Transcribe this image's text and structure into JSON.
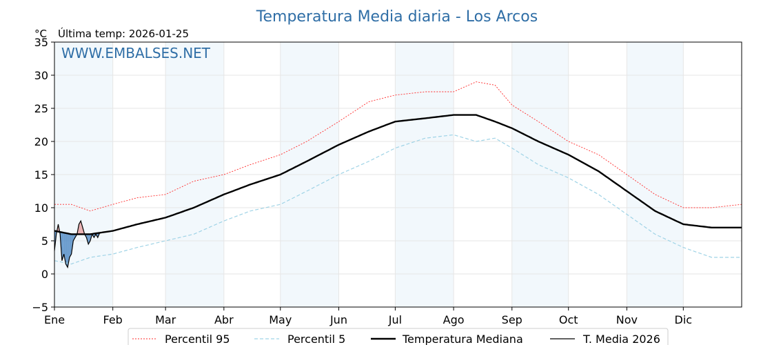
{
  "chart_data": {
    "type": "line",
    "title": "Temperatura Media diaria - Los Arcos",
    "unit_label": "°C",
    "last_temp_label": "Última temp: 2026-01-25",
    "watermark": "WWW.EMBALSES.NET",
    "ylim": [
      -5,
      35
    ],
    "yticks": [
      -5,
      0,
      5,
      10,
      15,
      20,
      25,
      30,
      35
    ],
    "ytick_labels": [
      "−5",
      "0",
      "5",
      "10",
      "15",
      "20",
      "25",
      "30",
      "35"
    ],
    "xlim": [
      1,
      366
    ],
    "months": [
      "Ene",
      "Feb",
      "Mar",
      "Abr",
      "May",
      "Jun",
      "Jul",
      "Ago",
      "Sep",
      "Oct",
      "Nov",
      "Dic"
    ],
    "month_start_days": [
      1,
      32,
      60,
      91,
      121,
      152,
      182,
      213,
      244,
      274,
      305,
      335
    ],
    "shaded_month_indices": [
      0,
      2,
      4,
      6,
      8,
      10
    ],
    "series": [
      {
        "name": "Percentil 95",
        "color": "#ff2a2a",
        "style": "dotted",
        "points": [
          [
            1,
            10.5
          ],
          [
            10,
            10.5
          ],
          [
            20,
            9.5
          ],
          [
            32,
            10.5
          ],
          [
            45,
            11.5
          ],
          [
            60,
            12
          ],
          [
            75,
            14
          ],
          [
            91,
            15
          ],
          [
            105,
            16.5
          ],
          [
            121,
            18
          ],
          [
            135,
            20
          ],
          [
            152,
            23
          ],
          [
            168,
            26
          ],
          [
            182,
            27
          ],
          [
            198,
            27.5
          ],
          [
            213,
            27.5
          ],
          [
            225,
            29
          ],
          [
            235,
            28.5
          ],
          [
            244,
            25.5
          ],
          [
            258,
            23
          ],
          [
            274,
            20
          ],
          [
            290,
            18
          ],
          [
            305,
            15
          ],
          [
            320,
            12
          ],
          [
            335,
            10
          ],
          [
            350,
            10
          ],
          [
            366,
            10.5
          ]
        ]
      },
      {
        "name": "Percentil 5",
        "color": "#9fd3e6",
        "style": "dashed",
        "points": [
          [
            1,
            2
          ],
          [
            10,
            1.5
          ],
          [
            20,
            2.5
          ],
          [
            32,
            3
          ],
          [
            45,
            4
          ],
          [
            60,
            5
          ],
          [
            75,
            6
          ],
          [
            91,
            8
          ],
          [
            105,
            9.5
          ],
          [
            121,
            10.5
          ],
          [
            135,
            12.5
          ],
          [
            152,
            15
          ],
          [
            168,
            17
          ],
          [
            182,
            19
          ],
          [
            198,
            20.5
          ],
          [
            213,
            21
          ],
          [
            225,
            20
          ],
          [
            235,
            20.5
          ],
          [
            244,
            19
          ],
          [
            258,
            16.5
          ],
          [
            274,
            14.5
          ],
          [
            290,
            12
          ],
          [
            305,
            9
          ],
          [
            320,
            6
          ],
          [
            335,
            4
          ],
          [
            350,
            2.5
          ],
          [
            366,
            2.5
          ]
        ]
      },
      {
        "name": "Temperatura Mediana",
        "color": "#000000",
        "style": "solid-bold",
        "points": [
          [
            1,
            6.5
          ],
          [
            10,
            6
          ],
          [
            20,
            6
          ],
          [
            32,
            6.5
          ],
          [
            45,
            7.5
          ],
          [
            60,
            8.5
          ],
          [
            75,
            10
          ],
          [
            91,
            12
          ],
          [
            105,
            13.5
          ],
          [
            121,
            15
          ],
          [
            135,
            17
          ],
          [
            152,
            19.5
          ],
          [
            168,
            21.5
          ],
          [
            182,
            23
          ],
          [
            198,
            23.5
          ],
          [
            213,
            24
          ],
          [
            225,
            24
          ],
          [
            235,
            23
          ],
          [
            244,
            22
          ],
          [
            258,
            20
          ],
          [
            274,
            18
          ],
          [
            290,
            15.5
          ],
          [
            305,
            12.5
          ],
          [
            320,
            9.5
          ],
          [
            335,
            7.5
          ],
          [
            350,
            7
          ],
          [
            366,
            7
          ]
        ]
      },
      {
        "name": "T. Media 2026",
        "color": "#000000",
        "style": "solid-thin",
        "points": [
          [
            1,
            3.5
          ],
          [
            2,
            6
          ],
          [
            3,
            7.5
          ],
          [
            4,
            6
          ],
          [
            5,
            2
          ],
          [
            6,
            3
          ],
          [
            7,
            1.5
          ],
          [
            8,
            1
          ],
          [
            9,
            2.5
          ],
          [
            10,
            3
          ],
          [
            11,
            5
          ],
          [
            12,
            5.5
          ],
          [
            13,
            6
          ],
          [
            14,
            7.5
          ],
          [
            15,
            8
          ],
          [
            16,
            7
          ],
          [
            17,
            6
          ],
          [
            18,
            5.5
          ],
          [
            19,
            4.5
          ],
          [
            20,
            5
          ],
          [
            21,
            6
          ],
          [
            22,
            5.5
          ],
          [
            23,
            6
          ],
          [
            24,
            5.5
          ],
          [
            25,
            6.2
          ]
        ]
      }
    ],
    "legend": {
      "placement": "bottom-center",
      "entries": [
        "Percentil 95",
        "Percentil 5",
        "Temperatura Mediana",
        "T. Media 2026"
      ]
    }
  }
}
